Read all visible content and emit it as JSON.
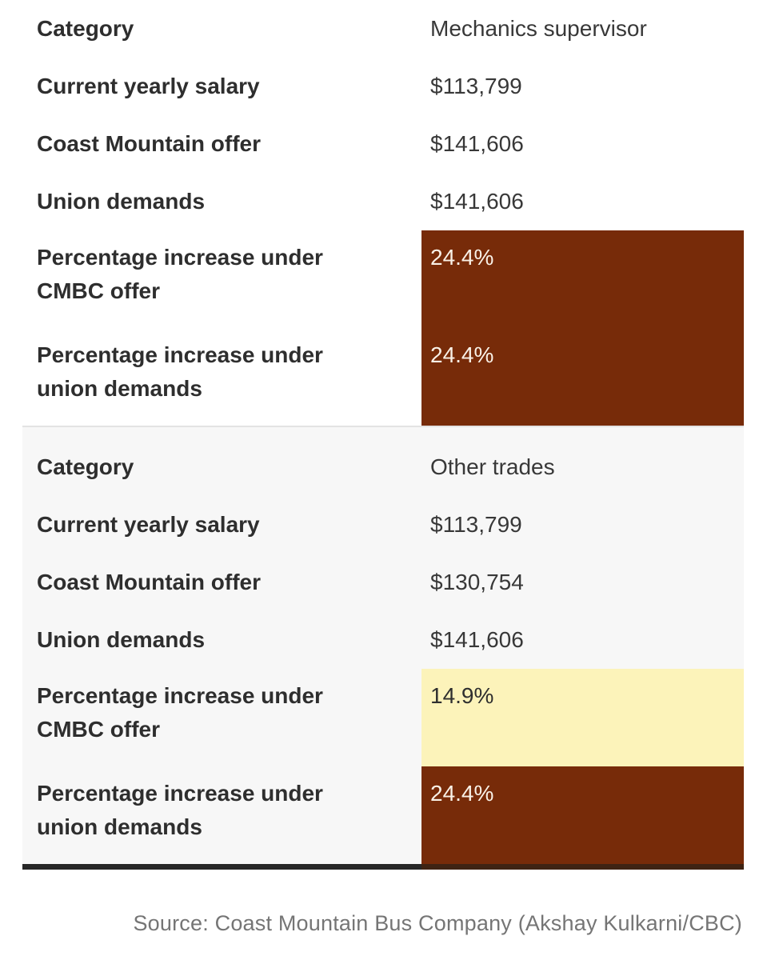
{
  "chart_data": [
    {
      "type": "table",
      "category": "Mechanics supervisor",
      "rows": [
        {
          "label": "Category",
          "value": "Mechanics supervisor",
          "highlight": "none"
        },
        {
          "label": "Current yearly salary",
          "value": "$113,799",
          "highlight": "none"
        },
        {
          "label": "Coast Mountain offer",
          "value": "$141,606",
          "highlight": "none"
        },
        {
          "label": "Union demands",
          "value": "$141,606",
          "highlight": "none"
        },
        {
          "label": "Percentage increase under CMBC offer",
          "value": "24.4%",
          "highlight": "brown"
        },
        {
          "label": "Percentage increase under union demands",
          "value": "24.4%",
          "highlight": "brown"
        }
      ]
    },
    {
      "type": "table",
      "category": "Other trades",
      "rows": [
        {
          "label": "Category",
          "value": "Other trades",
          "highlight": "none"
        },
        {
          "label": "Current yearly salary",
          "value": "$113,799",
          "highlight": "none"
        },
        {
          "label": "Coast Mountain offer",
          "value": "$130,754",
          "highlight": "none"
        },
        {
          "label": "Union demands",
          "value": "$141,606",
          "highlight": "none"
        },
        {
          "label": "Percentage increase under CMBC offer",
          "value": "14.9%",
          "highlight": "yellow"
        },
        {
          "label": "Percentage increase under union demands",
          "value": "24.4%",
          "highlight": "brown"
        }
      ]
    }
  ],
  "colors": {
    "brown_bg": "#772B09",
    "brown_text": "#F9F1E7",
    "yellow_bg": "#FCF3BA",
    "yellow_text": "#2F2F2F"
  },
  "source": {
    "text": "Source: Coast Mountain Bus Company (Akshay Kulkarni/CBC)"
  }
}
